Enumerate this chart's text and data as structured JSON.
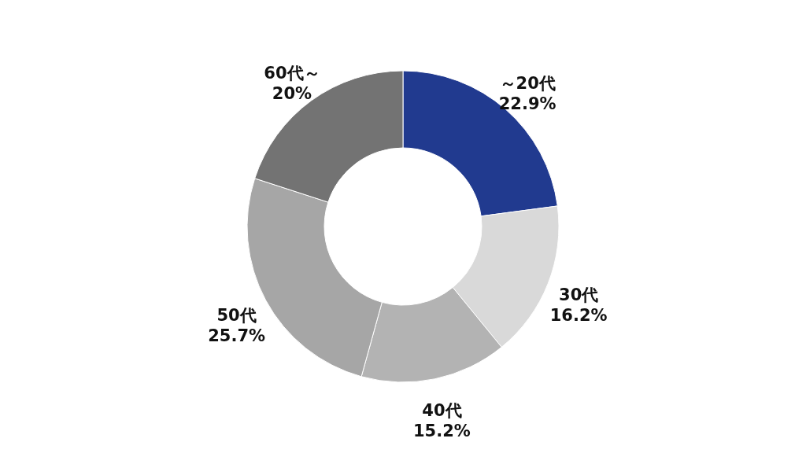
{
  "chart_data": {
    "type": "donut",
    "categories": [
      "～20代",
      "30代",
      "40代",
      "50代",
      "60代～"
    ],
    "values": [
      22.9,
      16.2,
      15.2,
      25.7,
      20
    ],
    "value_labels": [
      "22.9%",
      "16.2%",
      "15.2%",
      "25.7%",
      "20%"
    ],
    "colors": [
      "#213a8f",
      "#d9d9d9",
      "#b3b3b3",
      "#a6a6a6",
      "#737373"
    ]
  }
}
